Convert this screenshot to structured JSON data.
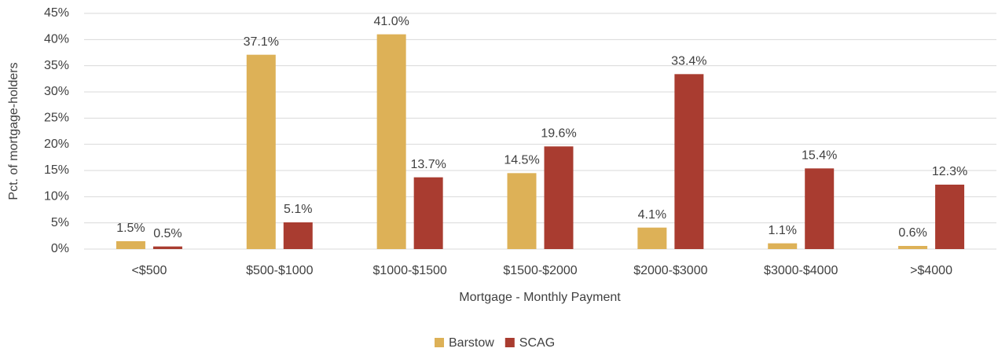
{
  "chart_data": {
    "type": "bar",
    "x_label": "Mortgage - Monthly Payment",
    "y_label": "Pct. of mortgage-holders",
    "categories": [
      "<$500",
      "$500-$1000",
      "$1000-$1500",
      "$1500-$2000",
      "$2000-$3000",
      "$3000-$4000",
      ">$4000"
    ],
    "series": [
      {
        "name": "Barstow",
        "color": "#ddb157",
        "values": [
          1.5,
          37.1,
          41.0,
          14.5,
          4.1,
          1.1,
          0.6
        ],
        "value_labels": [
          "1.5%",
          "37.1%",
          "41.0%",
          "14.5%",
          "4.1%",
          "1.1%",
          "0.6%"
        ]
      },
      {
        "name": "SCAG",
        "color": "#a93c30",
        "values": [
          0.5,
          5.1,
          13.7,
          19.6,
          33.4,
          15.4,
          12.3
        ],
        "value_labels": [
          "0.5%",
          "5.1%",
          "13.7%",
          "19.6%",
          "33.4%",
          "15.4%",
          "12.3%"
        ]
      }
    ],
    "ylim": [
      0,
      45
    ],
    "yticks": [
      {
        "value": 0,
        "label": "0%"
      },
      {
        "value": 5,
        "label": "5%"
      },
      {
        "value": 10,
        "label": "10%"
      },
      {
        "value": 15,
        "label": "15%"
      },
      {
        "value": 20,
        "label": "20%"
      },
      {
        "value": 25,
        "label": "25%"
      },
      {
        "value": 30,
        "label": "30%"
      },
      {
        "value": 35,
        "label": "35%"
      },
      {
        "value": 40,
        "label": "40%"
      },
      {
        "value": 45,
        "label": "45%"
      }
    ],
    "grid": true,
    "legend": "bottom"
  }
}
